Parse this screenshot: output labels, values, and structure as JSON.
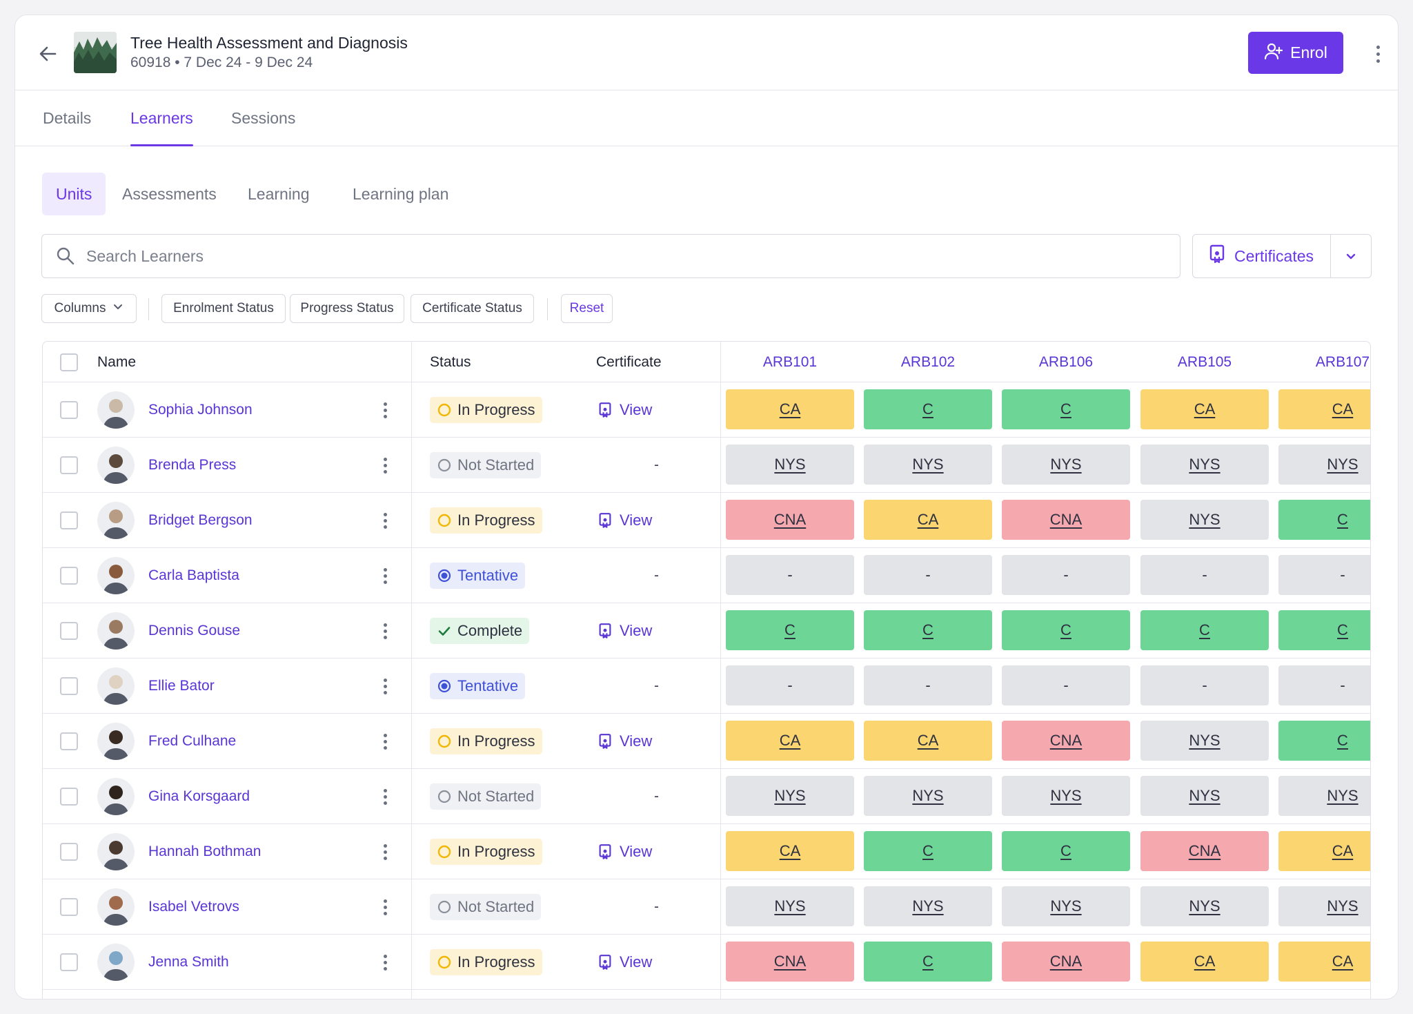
{
  "course": {
    "title": "Tree Health Assessment and Diagnosis",
    "subtitle": "60918 • 7 Dec 24 - 9 Dec 24",
    "enrol_label": "Enrol"
  },
  "tabs": [
    {
      "label": "Details",
      "active": false
    },
    {
      "label": "Learners",
      "active": true
    },
    {
      "label": "Sessions",
      "active": false
    }
  ],
  "subtabs": [
    {
      "label": "Units",
      "active": true
    },
    {
      "label": "Assessments",
      "active": false
    },
    {
      "label": "Learning",
      "active": false
    },
    {
      "label": "Learning plan",
      "active": false
    }
  ],
  "search": {
    "placeholder": "Search Learners",
    "value": ""
  },
  "certificates_label": "Certificates",
  "filters": {
    "columns": "Columns",
    "enrolment_status": "Enrolment Status",
    "progress_status": "Progress Status",
    "certificate_status": "Certificate Status",
    "reset": "Reset"
  },
  "table": {
    "headers": {
      "name": "Name",
      "status": "Status",
      "certificate": "Certificate"
    },
    "units": [
      "ARB101",
      "ARB102",
      "ARB106",
      "ARB105",
      "ARB107"
    ],
    "rows": [
      {
        "name": "Sophia Johnson",
        "status": "In Progress",
        "certificate": "View",
        "units": [
          "CA",
          "C",
          "C",
          "CA",
          "CA"
        ]
      },
      {
        "name": "Brenda Press",
        "status": "Not Started",
        "certificate": "-",
        "units": [
          "NYS",
          "NYS",
          "NYS",
          "NYS",
          "NYS"
        ]
      },
      {
        "name": "Bridget Bergson",
        "status": "In Progress",
        "certificate": "View",
        "units": [
          "CNA",
          "CA",
          "CNA",
          "NYS",
          "C"
        ]
      },
      {
        "name": "Carla Baptista",
        "status": "Tentative",
        "certificate": "-",
        "units": [
          "-",
          "-",
          "-",
          "-",
          "-"
        ]
      },
      {
        "name": "Dennis Gouse",
        "status": "Complete",
        "certificate": "View",
        "units": [
          "C",
          "C",
          "C",
          "C",
          "C"
        ]
      },
      {
        "name": "Ellie Bator",
        "status": "Tentative",
        "certificate": "-",
        "units": [
          "-",
          "-",
          "-",
          "-",
          "-"
        ]
      },
      {
        "name": "Fred Culhane",
        "status": "In Progress",
        "certificate": "View",
        "units": [
          "CA",
          "CA",
          "CNA",
          "NYS",
          "C"
        ]
      },
      {
        "name": "Gina Korsgaard",
        "status": "Not Started",
        "certificate": "-",
        "units": [
          "NYS",
          "NYS",
          "NYS",
          "NYS",
          "NYS"
        ]
      },
      {
        "name": "Hannah Bothman",
        "status": "In Progress",
        "certificate": "View",
        "units": [
          "CA",
          "C",
          "C",
          "CNA",
          "CA"
        ]
      },
      {
        "name": "Isabel Vetrovs",
        "status": "Not Started",
        "certificate": "-",
        "units": [
          "NYS",
          "NYS",
          "NYS",
          "NYS",
          "NYS"
        ]
      },
      {
        "name": "Jenna Smith",
        "status": "In Progress",
        "certificate": "View",
        "units": [
          "CNA",
          "C",
          "CNA",
          "CA",
          "CA"
        ]
      }
    ]
  },
  "colors": {
    "accent": "#6a38e6",
    "unit_CA": "#fbd56f",
    "unit_C": "#6dd697",
    "unit_CNA": "#f5a8ae",
    "unit_NYS": "#e2e4e8"
  }
}
